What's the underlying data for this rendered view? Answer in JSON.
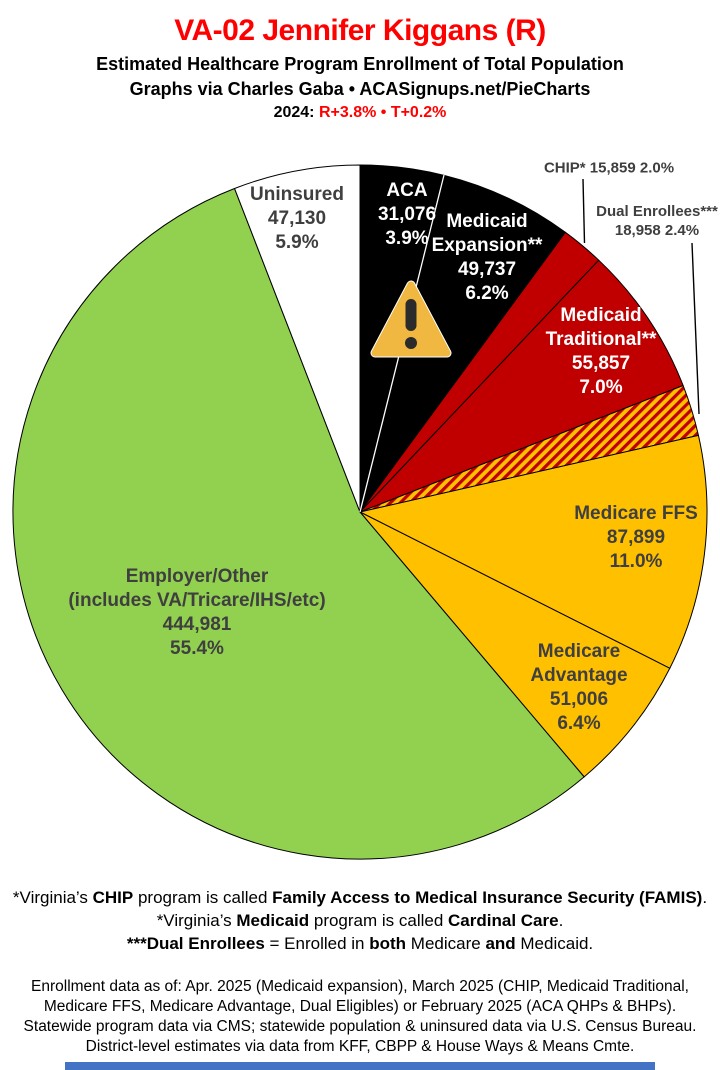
{
  "header": {
    "title": "VA-02 Jennifer Kiggans (R)",
    "subtitle1": "Estimated Healthcare Program Enrollment of Total Population",
    "subtitle2": "Graphs via Charles Gaba   •   ACASignups.net/PieCharts",
    "year_prefix": "2024:",
    "year_value": "R+3.8%  •  T+0.2%"
  },
  "chart_data": {
    "type": "pie",
    "title": "Estimated Healthcare Program Enrollment of Total Population",
    "legend_position": "labels-on-slices",
    "start_angle": "top, clockwise",
    "colors": {
      "black": "#000000",
      "red": "#c00000",
      "gold": "#ffc000",
      "green": "#92d050",
      "white": "#ffffff",
      "hatch_bg": "#ffc000",
      "hatch_stripe": "#c00000"
    },
    "slices": [
      {
        "label": "ACA",
        "value": 31076,
        "value_text": "31,076",
        "pct": 3.9,
        "pct_text": "3.9%",
        "color": "#000000"
      },
      {
        "label": "Medicaid",
        "label2": "Expansion**",
        "value": 49737,
        "value_text": "49,737",
        "pct": 6.2,
        "pct_text": "6.2%",
        "color": "#000000"
      },
      {
        "label": "CHIP*",
        "value": 15859,
        "value_text": "15,859",
        "pct": 2.0,
        "pct_text": "2.0%",
        "color": "#c00000",
        "callout": true
      },
      {
        "label": "Medicaid",
        "label2": "Traditional**",
        "value": 55857,
        "value_text": "55,857",
        "pct": 7.0,
        "pct_text": "7.0%",
        "color": "#c00000"
      },
      {
        "label": "Dual Enrollees***",
        "value": 18958,
        "value_text": "18,958",
        "pct": 2.4,
        "pct_text": "2.4%",
        "color": "hatch",
        "callout": true
      },
      {
        "label": "Medicare FFS",
        "value": 87899,
        "value_text": "87,899",
        "pct": 11.0,
        "pct_text": "11.0%",
        "color": "#ffc000"
      },
      {
        "label": "Medicare",
        "label2": "Advantage",
        "value": 51006,
        "value_text": "51,006",
        "pct": 6.4,
        "pct_text": "6.4%",
        "color": "#ffc000"
      },
      {
        "label": "Employer/Other",
        "label2": "(includes VA/Tricare/IHS/etc)",
        "value": 444981,
        "value_text": "444,981",
        "pct": 55.4,
        "pct_text": "55.4%",
        "color": "#92d050"
      },
      {
        "label": "Uninsured",
        "value": 47130,
        "value_text": "47,130",
        "pct": 5.9,
        "pct_text": "5.9%",
        "color": "#ffffff"
      }
    ]
  },
  "warning_icon": {
    "name": "warning-triangle",
    "meaning": "data caution marker on ACA / Medicaid Expansion slices"
  },
  "notes": [
    {
      "segments": [
        {
          "t": "*Virginia’s ",
          "b": false
        },
        {
          "t": "CHIP",
          "b": true
        },
        {
          "t": " program is called ",
          "b": false
        },
        {
          "t": "Family Access to Medical Insurance Security (FAMIS)",
          "b": true
        },
        {
          "t": ".",
          "b": false
        }
      ]
    },
    {
      "segments": [
        {
          "t": "*Virginia’s ",
          "b": false
        },
        {
          "t": "Medicaid",
          "b": true
        },
        {
          "t": " program is called ",
          "b": false
        },
        {
          "t": "Cardinal Care",
          "b": true
        },
        {
          "t": ".",
          "b": false
        }
      ]
    },
    {
      "segments": [
        {
          "t": "***Dual Enrollees",
          "b": true
        },
        {
          "t": " = Enrolled in ",
          "b": false
        },
        {
          "t": "both",
          "b": true
        },
        {
          "t": " Medicare ",
          "b": false
        },
        {
          "t": "and",
          "b": true
        },
        {
          "t": " Medicaid.",
          "b": false
        }
      ]
    }
  ],
  "sources": {
    "lines": [
      "Enrollment data as of: Apr. 2025 (Medicaid expansion), March 2025 (CHIP, Medicaid Traditional,",
      "Medicare FFS, Medicare Advantage, Dual Eligibles) or February 2025 (ACA QHPs & BHPs).",
      "Statewide program data via CMS; statewide population & uninsured data via U.S. Census Bureau.",
      "District-level estimates via data from KFF, CBPP & House Ways & Means Cmte."
    ]
  }
}
